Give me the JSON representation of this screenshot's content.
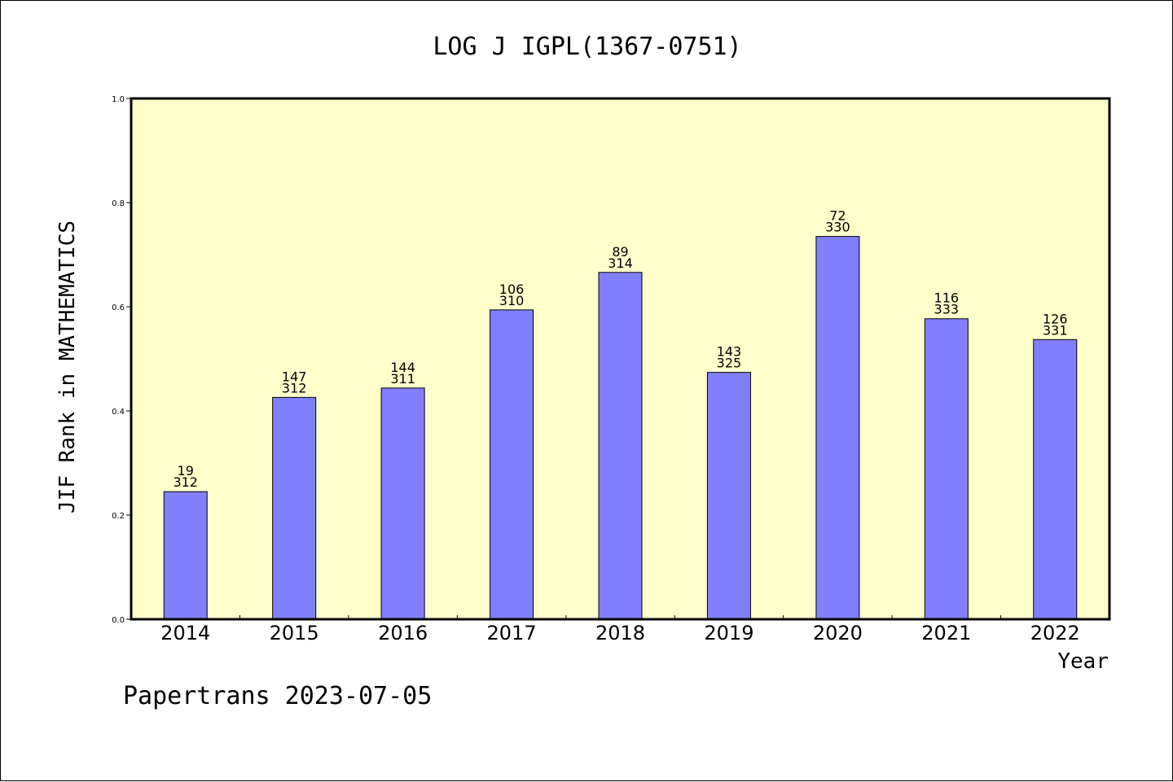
{
  "chart_data": {
    "type": "bar",
    "title": "LOG J IGPL(1367-0751)",
    "xlabel": "Year",
    "ylabel": "JIF Rank in MATHEMATICS",
    "ylim": [
      0.0,
      1.0
    ],
    "yticks": [
      "0.0",
      "0.2",
      "0.4",
      "0.6",
      "0.8",
      "1.0"
    ],
    "categories": [
      "2014",
      "2015",
      "2016",
      "2017",
      "2018",
      "2019",
      "2020",
      "2021",
      "2022"
    ],
    "values": [
      0.245,
      0.426,
      0.444,
      0.594,
      0.666,
      0.474,
      0.735,
      0.577,
      0.537
    ],
    "rank": [
      "19",
      "147",
      "144",
      "106",
      "89",
      "143",
      "72",
      "116",
      "126"
    ],
    "total": [
      "312",
      "312",
      "311",
      "310",
      "314",
      "325",
      "330",
      "333",
      "331"
    ],
    "plot_background": "#ffffcc",
    "bar_color": "#8080ff",
    "grid": false,
    "legend": "none"
  },
  "footer": "Papertrans 2023-07-05"
}
